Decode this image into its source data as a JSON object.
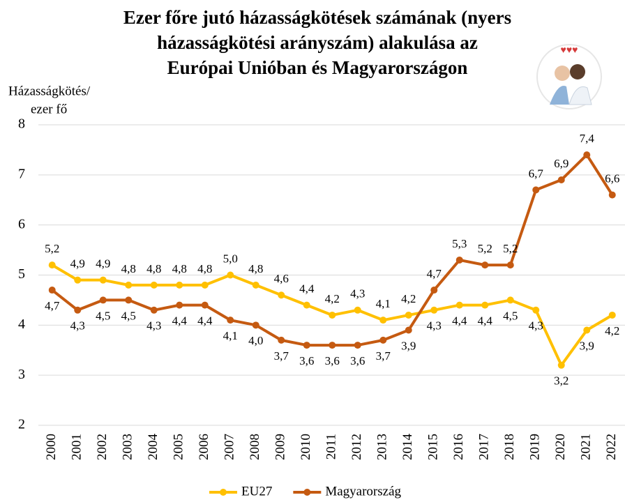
{
  "chart_data": {
    "type": "line",
    "title": [
      "Ezer főre jutó házasságkötések számának (nyers",
      "házasságkötési arányszám) alakulása az",
      "Európai Unióban és Magyarországon"
    ],
    "y_label": [
      "Házasságkötés/",
      "ezer fő"
    ],
    "categories": [
      "2000",
      "2001",
      "2002",
      "2003",
      "2004",
      "2005",
      "2006",
      "2007",
      "2008",
      "2009",
      "2010",
      "2011",
      "2012",
      "2013",
      "2014",
      "2015",
      "2016",
      "2017",
      "2018",
      "2019",
      "2020",
      "2021",
      "2022"
    ],
    "series": [
      {
        "name": "EU27",
        "color": "#FFC000",
        "values": [
          5.2,
          4.9,
          4.9,
          4.8,
          4.8,
          4.8,
          4.8,
          5.0,
          4.8,
          4.6,
          4.4,
          4.2,
          4.3,
          4.1,
          4.2,
          4.3,
          4.4,
          4.4,
          4.5,
          4.3,
          3.2,
          3.9,
          4.2
        ],
        "value_labels": [
          "5,2",
          "4,9",
          "4,9",
          "4,8",
          "4,8",
          "4,8",
          "4,8",
          "5,0",
          "4,8",
          "4,6",
          "4,4",
          "4,2",
          "4,3",
          "4,1",
          "4,2",
          "4,3",
          "4,4",
          "4,4",
          "4,5",
          "4,3",
          "3,2",
          "3,9",
          "4,2"
        ]
      },
      {
        "name": "Magyarország",
        "color": "#C55A11",
        "values": [
          4.7,
          4.3,
          4.5,
          4.5,
          4.3,
          4.4,
          4.4,
          4.1,
          4.0,
          3.7,
          3.6,
          3.6,
          3.6,
          3.7,
          3.9,
          4.7,
          5.3,
          5.2,
          5.2,
          6.7,
          6.9,
          7.4,
          6.6
        ],
        "value_labels": [
          "4,7",
          "4,3",
          "4,5",
          "4,5",
          "4,3",
          "4,4",
          "4,4",
          "4,1",
          "4,0",
          "3,7",
          "3,6",
          "3,6",
          "3,6",
          "3,7",
          "3,9",
          "4,7",
          "5,3",
          "5,2",
          "5,2",
          "6,7",
          "6,9",
          "7,4",
          "6,6"
        ]
      }
    ],
    "ylim": [
      2,
      8
    ],
    "yticks": [
      2,
      3,
      4,
      5,
      6,
      7,
      8
    ],
    "grid": true,
    "legend": "bottom"
  }
}
